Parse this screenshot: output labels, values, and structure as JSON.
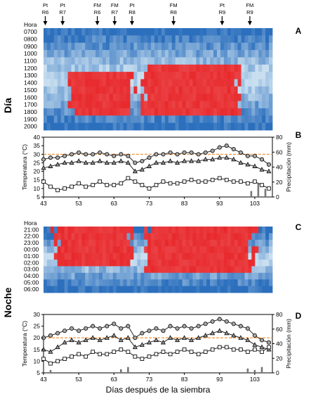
{
  "figure": {
    "panel_letters": [
      "A",
      "B",
      "C",
      "D"
    ],
    "side_label_day": "Día",
    "side_label_night": "Noche",
    "xlabel": "Días después de la siembra"
  },
  "chart_data": [
    {
      "id": "A",
      "type": "heatmap",
      "ylabel_head": "Hora",
      "rows": [
        "0700",
        "0800",
        "0900",
        "1000",
        "1100",
        "1200",
        "1300",
        "1400",
        "1500",
        "1600",
        "1700",
        "1800",
        "1900",
        "2000"
      ],
      "x_range": [
        43,
        108
      ],
      "stage_markers": [
        {
          "line1": "Pt",
          "line2": "R6",
          "day": 43
        },
        {
          "line1": "Pt",
          "line2": "R7",
          "day": 48
        },
        {
          "line1": "FM",
          "line2": "R6",
          "day": 58
        },
        {
          "line1": "FM",
          "line2": "R7",
          "day": 63
        },
        {
          "line1": "Pt",
          "line2": "R8",
          "day": 68
        },
        {
          "line1": "FM",
          "line2": "R8",
          "day": 80
        },
        {
          "line1": "Pt",
          "line2": "R9",
          "day": 94
        },
        {
          "line1": "FM",
          "line2": "R9",
          "day": 102
        }
      ],
      "hot_regions": [
        {
          "day_start": 50,
          "day_end": 68,
          "row_start": 6,
          "row_end": 11
        },
        {
          "day_start": 71,
          "day_end": 99,
          "row_start": 5,
          "row_end": 11
        }
      ],
      "colors": {
        "hot": "#e8292c",
        "cool": "#2b6fbd",
        "mild": "#c9dff0"
      }
    },
    {
      "id": "B",
      "type": "line",
      "ylabel": "Temperatura (°C)",
      "y2label": "Precipitación (mm)",
      "ylim": [
        5,
        40
      ],
      "yticks": [
        5,
        10,
        15,
        20,
        25,
        30,
        35,
        40
      ],
      "y2lim": [
        0,
        80
      ],
      "y2ticks": [
        0,
        20,
        40,
        60,
        80
      ],
      "xticks": [
        43,
        53,
        63,
        73,
        83,
        93,
        103
      ],
      "x_range": [
        43,
        108
      ],
      "reference_line": 30,
      "series": [
        {
          "marker": "circle",
          "x": [
            43,
            45,
            47,
            49,
            51,
            53,
            55,
            57,
            59,
            61,
            63,
            65,
            67,
            69,
            71,
            73,
            75,
            77,
            79,
            81,
            83,
            85,
            87,
            89,
            91,
            93,
            95,
            97,
            99,
            101,
            103,
            105,
            107
          ],
          "values": [
            27,
            28,
            28,
            29,
            30,
            31,
            30,
            30,
            31,
            30,
            29,
            30,
            29,
            25,
            26,
            28,
            30,
            30,
            31,
            30,
            31,
            31,
            30,
            31,
            32,
            34,
            35,
            33,
            31,
            29,
            29,
            27,
            24
          ]
        },
        {
          "marker": "triangle",
          "x": [
            43,
            45,
            47,
            49,
            51,
            53,
            55,
            57,
            59,
            61,
            63,
            65,
            67,
            69,
            71,
            73,
            75,
            77,
            79,
            81,
            83,
            85,
            87,
            89,
            91,
            93,
            95,
            97,
            99,
            101,
            103,
            105,
            107
          ],
          "values": [
            22,
            23,
            24,
            25,
            25,
            26,
            25,
            25,
            26,
            25,
            25,
            26,
            25,
            20,
            21,
            23,
            25,
            25,
            26,
            25,
            26,
            26,
            26,
            27,
            27,
            28,
            28,
            27,
            25,
            24,
            23,
            21,
            20
          ]
        },
        {
          "marker": "square",
          "x": [
            43,
            45,
            47,
            49,
            51,
            53,
            55,
            57,
            59,
            61,
            63,
            65,
            67,
            69,
            71,
            73,
            75,
            77,
            79,
            81,
            83,
            85,
            87,
            89,
            91,
            93,
            95,
            97,
            99,
            101,
            103,
            105,
            107
          ],
          "values": [
            14,
            11,
            9,
            10,
            11,
            13,
            11,
            12,
            14,
            12,
            12,
            13,
            16,
            14,
            12,
            10,
            12,
            14,
            13,
            13,
            14,
            15,
            14,
            14,
            15,
            16,
            15,
            14,
            14,
            13,
            14,
            12,
            10
          ]
        }
      ],
      "precipitation": {
        "x": [
          102,
          104,
          106
        ],
        "values": [
          8,
          18,
          11
        ]
      }
    },
    {
      "id": "C",
      "type": "heatmap",
      "ylabel_head": "Hora",
      "rows": [
        "21:00",
        "22:00",
        "23:00",
        "00:00",
        "01:00",
        "02:00",
        "03:00",
        "04:00",
        "05:00",
        "06:00"
      ],
      "x_range": [
        43,
        108
      ],
      "hot_regions": [
        {
          "day_start": 46,
          "day_end": 68,
          "row_start": 0,
          "row_end": 5
        },
        {
          "day_start": 72,
          "day_end": 103,
          "row_start": 0,
          "row_end": 6
        }
      ],
      "colors": {
        "hot": "#e8292c",
        "cool": "#2b6fbd",
        "mild": "#c9dff0"
      }
    },
    {
      "id": "D",
      "type": "line",
      "ylabel": "Temperatura (°C)",
      "y2label": "Precipitación (mm)",
      "ylim": [
        5,
        30
      ],
      "yticks": [
        5,
        10,
        15,
        20,
        25,
        30
      ],
      "y2lim": [
        0,
        80
      ],
      "y2ticks": [
        0,
        20,
        40,
        60,
        80
      ],
      "xticks": [
        43,
        53,
        63,
        73,
        83,
        93,
        103
      ],
      "x_range": [
        43,
        108
      ],
      "reference_line": 20,
      "series": [
        {
          "marker": "circle",
          "x": [
            43,
            45,
            47,
            49,
            51,
            53,
            55,
            57,
            59,
            61,
            63,
            65,
            67,
            69,
            71,
            73,
            75,
            77,
            79,
            81,
            83,
            85,
            87,
            89,
            91,
            93,
            95,
            97,
            99,
            101,
            103,
            105,
            107
          ],
          "values": [
            20,
            21,
            22,
            23,
            24,
            23,
            24,
            25,
            24,
            25,
            26,
            24,
            25,
            20,
            22,
            23,
            24,
            23,
            25,
            24,
            25,
            24,
            25,
            26,
            27,
            28,
            27,
            26,
            25,
            24,
            21,
            19,
            18
          ]
        },
        {
          "marker": "triangle",
          "x": [
            43,
            45,
            47,
            49,
            51,
            53,
            55,
            57,
            59,
            61,
            63,
            65,
            67,
            69,
            71,
            73,
            75,
            77,
            79,
            81,
            83,
            85,
            87,
            89,
            91,
            93,
            95,
            97,
            99,
            101,
            103,
            105,
            107
          ],
          "values": [
            15,
            14,
            16,
            18,
            19,
            18,
            19,
            20,
            19,
            20,
            21,
            19,
            20,
            16,
            17,
            18,
            19,
            18,
            20,
            19,
            20,
            19,
            20,
            21,
            22,
            23,
            22,
            21,
            20,
            19,
            17,
            16,
            15
          ]
        },
        {
          "marker": "square",
          "x": [
            43,
            45,
            47,
            49,
            51,
            53,
            55,
            57,
            59,
            61,
            63,
            65,
            67,
            69,
            71,
            73,
            75,
            77,
            79,
            81,
            83,
            85,
            87,
            89,
            91,
            93,
            95,
            97,
            99,
            101,
            103,
            105,
            107
          ],
          "values": [
            11,
            9,
            10,
            11,
            12,
            13,
            12,
            14,
            13,
            13,
            14,
            15,
            14,
            12,
            11,
            12,
            13,
            14,
            13,
            14,
            15,
            14,
            13,
            14,
            15,
            16,
            16,
            15,
            15,
            14,
            15,
            14,
            16
          ]
        }
      ],
      "precipitation": {
        "x": [
          45,
          65,
          67,
          101,
          103,
          105
        ],
        "values": [
          4,
          5,
          8,
          6,
          4,
          8
        ]
      }
    }
  ]
}
